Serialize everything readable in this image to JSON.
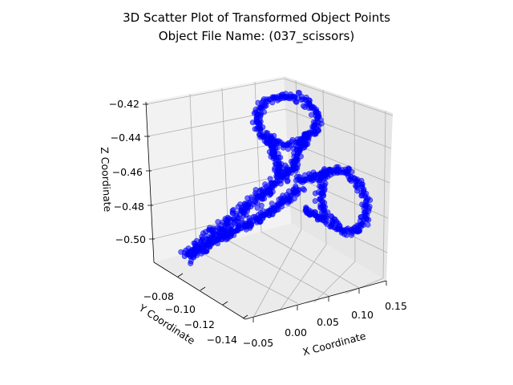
{
  "chart_data": {
    "type": "scatter",
    "title": "3D Scatter Plot of Transformed Object Points",
    "subtitle": "Object File Name: (037_scissors)",
    "xlabel": "X Coordinate",
    "ylabel": "Y Coordinate",
    "zlabel": "Z Coordinate",
    "xticks": [
      "−0.05",
      "0.00",
      "0.05",
      "0.10",
      "0.15"
    ],
    "yticks": [
      "−0.08",
      "−0.10",
      "−0.12",
      "−0.14"
    ],
    "zticks": [
      "−0.42",
      "−0.44",
      "−0.46",
      "−0.48",
      "−0.50"
    ],
    "grid": true,
    "point_color": "#0000ff",
    "series": [
      {
        "description_points": [
          {
            "x": -0.03,
            "y": -0.085,
            "z": -0.505
          },
          {
            "x": 0.0,
            "y": -0.09,
            "z": -0.495
          },
          {
            "x": 0.02,
            "y": -0.095,
            "z": -0.485
          },
          {
            "x": 0.04,
            "y": -0.1,
            "z": -0.475
          },
          {
            "x": 0.05,
            "y": -0.105,
            "z": -0.465
          },
          {
            "x": 0.06,
            "y": -0.1,
            "z": -0.45
          },
          {
            "x": 0.065,
            "y": -0.095,
            "z": -0.435
          },
          {
            "x": 0.07,
            "y": -0.1,
            "z": -0.425
          },
          {
            "x": 0.09,
            "y": -0.11,
            "z": -0.46
          },
          {
            "x": 0.11,
            "y": -0.115,
            "z": -0.47
          },
          {
            "x": 0.12,
            "y": -0.12,
            "z": -0.48
          }
        ]
      }
    ]
  }
}
